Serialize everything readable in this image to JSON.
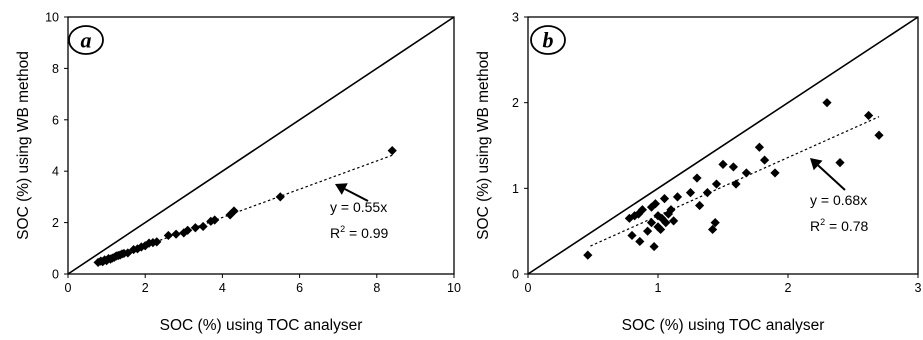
{
  "chart_data": [
    {
      "type": "scatter",
      "panel_label": "a",
      "xlabel": "SOC (%) using TOC analyser",
      "ylabel": "SOC (%) using WB method",
      "xlim": [
        0,
        10
      ],
      "ylim": [
        0,
        10
      ],
      "xticks": [
        "0",
        "2",
        "4",
        "6",
        "8",
        "10"
      ],
      "yticks": [
        "0",
        "2",
        "4",
        "6",
        "8",
        "10"
      ],
      "grid": false,
      "one_to_one_line": true,
      "trendline": {
        "slope": 0.55,
        "style": "dotted",
        "x_range": [
          0.8,
          8.4
        ]
      },
      "equation": "y = 0.55x",
      "r2_prefix": "R",
      "r2_sup": "2",
      "r2_value": " = 0.99",
      "points": [
        [
          0.78,
          0.45
        ],
        [
          0.85,
          0.5
        ],
        [
          0.9,
          0.48
        ],
        [
          0.95,
          0.55
        ],
        [
          1.0,
          0.52
        ],
        [
          1.05,
          0.6
        ],
        [
          1.1,
          0.58
        ],
        [
          1.15,
          0.62
        ],
        [
          1.2,
          0.65
        ],
        [
          1.25,
          0.7
        ],
        [
          1.3,
          0.72
        ],
        [
          1.35,
          0.74
        ],
        [
          1.4,
          0.78
        ],
        [
          1.45,
          0.8
        ],
        [
          1.55,
          0.82
        ],
        [
          1.7,
          0.95
        ],
        [
          1.8,
          0.98
        ],
        [
          1.9,
          1.05
        ],
        [
          2.0,
          1.1
        ],
        [
          2.1,
          1.2
        ],
        [
          2.2,
          1.22
        ],
        [
          2.3,
          1.25
        ],
        [
          2.6,
          1.5
        ],
        [
          2.8,
          1.55
        ],
        [
          3.0,
          1.6
        ],
        [
          3.1,
          1.7
        ],
        [
          3.3,
          1.8
        ],
        [
          3.5,
          1.85
        ],
        [
          3.7,
          2.05
        ],
        [
          3.8,
          2.1
        ],
        [
          4.2,
          2.3
        ],
        [
          4.3,
          2.45
        ],
        [
          5.5,
          3.0
        ],
        [
          8.4,
          4.8
        ]
      ]
    },
    {
      "type": "scatter",
      "panel_label": "b",
      "xlabel": "SOC (%) using TOC analyser",
      "ylabel": "SOC (%) using WB method",
      "xlim": [
        0,
        3
      ],
      "ylim": [
        0,
        3
      ],
      "xticks": [
        "0",
        "1",
        "2",
        "3"
      ],
      "yticks": [
        "0",
        "1",
        "2",
        "3"
      ],
      "grid": false,
      "one_to_one_line": true,
      "trendline": {
        "slope": 0.68,
        "style": "dotted",
        "x_range": [
          0.48,
          2.7
        ]
      },
      "equation": "y = 0.68x",
      "r2_prefix": "R",
      "r2_sup": "2",
      "r2_value": " = 0.78",
      "points": [
        [
          0.46,
          0.22
        ],
        [
          0.78,
          0.65
        ],
        [
          0.8,
          0.45
        ],
        [
          0.82,
          0.68
        ],
        [
          0.85,
          0.7
        ],
        [
          0.88,
          0.75
        ],
        [
          0.86,
          0.38
        ],
        [
          0.92,
          0.5
        ],
        [
          0.95,
          0.78
        ],
        [
          0.95,
          0.6
        ],
        [
          0.97,
          0.32
        ],
        [
          0.98,
          0.82
        ],
        [
          1.0,
          0.55
        ],
        [
          1.0,
          0.68
        ],
        [
          1.02,
          0.52
        ],
        [
          1.03,
          0.65
        ],
        [
          1.05,
          0.88
        ],
        [
          1.06,
          0.6
        ],
        [
          1.08,
          0.7
        ],
        [
          1.1,
          0.75
        ],
        [
          1.12,
          0.62
        ],
        [
          1.15,
          0.9
        ],
        [
          1.25,
          0.95
        ],
        [
          1.3,
          1.12
        ],
        [
          1.32,
          0.8
        ],
        [
          1.38,
          0.95
        ],
        [
          1.42,
          0.52
        ],
        [
          1.44,
          0.6
        ],
        [
          1.45,
          1.05
        ],
        [
          1.5,
          1.28
        ],
        [
          1.58,
          1.25
        ],
        [
          1.6,
          1.05
        ],
        [
          1.68,
          1.18
        ],
        [
          1.78,
          1.48
        ],
        [
          1.82,
          1.33
        ],
        [
          1.9,
          1.18
        ],
        [
          2.3,
          2.0
        ],
        [
          2.4,
          1.3
        ],
        [
          2.62,
          1.85
        ],
        [
          2.7,
          1.62
        ]
      ]
    }
  ]
}
